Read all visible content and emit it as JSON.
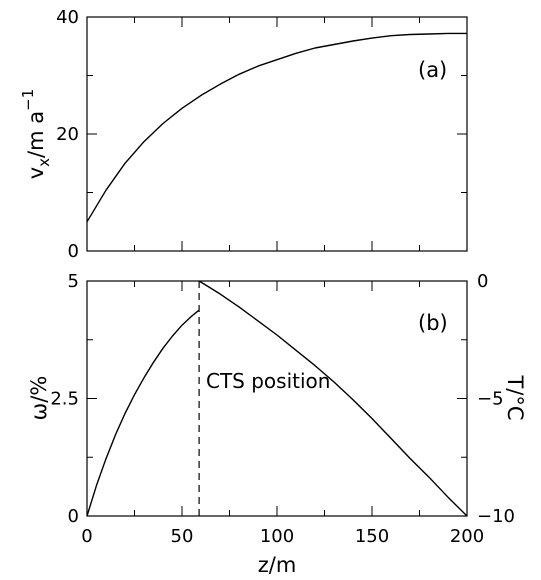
{
  "chart_data": [
    {
      "panel_label": "(a)",
      "type": "line",
      "xlim": [
        0,
        200
      ],
      "ylim": [
        0,
        40
      ],
      "ylabel": "v_x/m a^-1",
      "ylabel_parts": {
        "v": "v",
        "x": "x",
        "unit": "/m a",
        "exp": "−1"
      },
      "y_ticks": [
        0,
        20,
        40
      ],
      "x_ticks_labeled": false,
      "grid": false,
      "series": [
        {
          "x": [
            0,
            10,
            20,
            30,
            40,
            50,
            60,
            70,
            80,
            90,
            100,
            110,
            120,
            130,
            140,
            150,
            160,
            170,
            180,
            190,
            200
          ],
          "values": [
            5.0,
            10.4,
            15.0,
            18.7,
            21.8,
            24.4,
            26.6,
            28.5,
            30.2,
            31.6,
            32.7,
            33.8,
            34.7,
            35.3,
            35.9,
            36.4,
            36.8,
            37.0,
            37.1,
            37.2,
            37.2
          ]
        }
      ]
    },
    {
      "panel_label": "(b)",
      "type": "line",
      "xlim": [
        0,
        200
      ],
      "ylim": [
        0,
        5
      ],
      "xlabel": "z/m",
      "ylabel": "ω/%",
      "y_ticks": [
        0,
        2.5,
        5
      ],
      "x_ticks": [
        0,
        50,
        100,
        150,
        200
      ],
      "y2label": "T/°C",
      "y2lim": [
        -10,
        0
      ],
      "y2_ticks": [
        0,
        -5,
        -10
      ],
      "grid": false,
      "series": [
        {
          "axis": "left",
          "x": [
            0,
            5,
            10,
            15,
            20,
            25,
            30,
            35,
            40,
            45,
            50,
            55,
            59
          ],
          "values": [
            0,
            0.65,
            1.22,
            1.73,
            2.18,
            2.58,
            2.94,
            3.27,
            3.57,
            3.83,
            4.06,
            4.25,
            4.38
          ]
        },
        {
          "axis": "right",
          "x": [
            59,
            70,
            80,
            90,
            100,
            110,
            120,
            130,
            140,
            150,
            160,
            170,
            180,
            190,
            200
          ],
          "values": [
            0,
            -0.55,
            -1.1,
            -1.7,
            -2.3,
            -2.95,
            -3.6,
            -4.3,
            -5.05,
            -5.85,
            -6.7,
            -7.55,
            -8.35,
            -9.2,
            -10
          ]
        }
      ],
      "vline": {
        "x": 59,
        "style": "dashed",
        "label": "CTS position"
      }
    }
  ]
}
